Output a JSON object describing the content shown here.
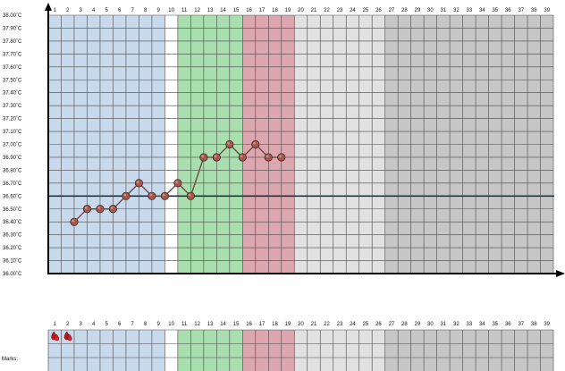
{
  "chart_data": {
    "type": "line",
    "title": "",
    "xlabel": "",
    "ylabel": "",
    "x_ticks": [
      "1",
      "2",
      "3",
      "4",
      "5",
      "6",
      "7",
      "8",
      "9",
      "10",
      "11",
      "12",
      "13",
      "14",
      "15",
      "16",
      "17",
      "18",
      "19",
      "20",
      "21",
      "22",
      "23",
      "24",
      "25",
      "26",
      "27",
      "28",
      "29",
      "30",
      "31",
      "32",
      "33",
      "34",
      "35",
      "36",
      "37",
      "38",
      "39"
    ],
    "y_ticks": [
      "36.00˚C",
      "36.10˚C",
      "36.20˚C",
      "36.30˚C",
      "36.40˚C",
      "36.50˚C",
      "36.60˚C",
      "36.70˚C",
      "36.80˚C",
      "36.90˚C",
      "37.00˚C",
      "37.10˚C",
      "37.20˚C",
      "37.30˚C",
      "37.40˚C",
      "37.50˚C",
      "37.60˚C",
      "37.70˚C",
      "37.80˚C",
      "37.90˚C",
      "38.00˚C"
    ],
    "xlim": [
      1,
      39
    ],
    "ylim": [
      36.0,
      38.0
    ],
    "grid": true,
    "coverline": 36.6,
    "series": [
      {
        "x": [
          3,
          4,
          5,
          6,
          7,
          8,
          9,
          10,
          11,
          12,
          13,
          14,
          15,
          16,
          17,
          18,
          19
        ],
        "values": [
          36.4,
          36.5,
          36.5,
          36.5,
          36.6,
          36.7,
          36.6,
          36.6,
          36.7,
          36.6,
          36.9,
          36.9,
          37.0,
          36.9,
          37.0,
          36.9,
          36.9
        ]
      }
    ],
    "phases": [
      {
        "from": 1,
        "to": 9,
        "color": "#c9d9ec"
      },
      {
        "from": 11,
        "to": 15,
        "color": "#a9deae"
      },
      {
        "from": 16,
        "to": 19,
        "color": "#dca7ae"
      },
      {
        "from": 20,
        "to": 26,
        "color": "#e1e1e1"
      },
      {
        "from": 27,
        "to": 39,
        "color": "#c6c6c6"
      }
    ],
    "colors": {
      "point": "#a4574d",
      "line": "#6d4b42",
      "coverline": "#1d3640",
      "axis": "#000000",
      "grid": "#4a4a4a"
    }
  },
  "marks_panel": {
    "label": "Marks:",
    "marked_days": [
      1,
      2
    ],
    "marker_icon": "blood-drop-icon"
  }
}
